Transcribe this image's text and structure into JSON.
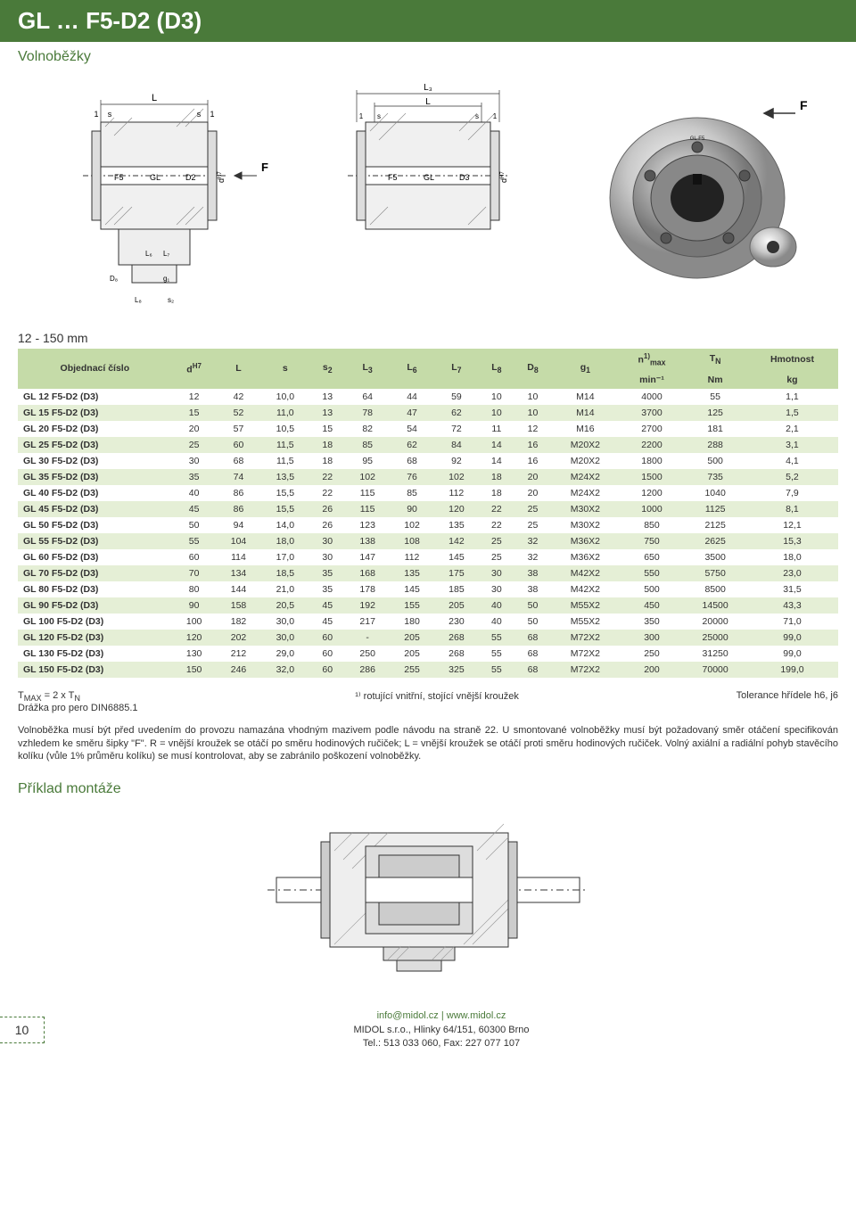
{
  "header": {
    "title": "GL … F5-D2 (D3)",
    "subtitle": "Volnoběžky",
    "dim_label": "12 - 150 mm"
  },
  "diagrams": {
    "d1_labels": {
      "top_L": "L",
      "s": "s",
      "1": "1",
      "F5": "F5",
      "GL": "GL",
      "D2": "D2",
      "F": "F",
      "dH7": "d",
      "L6": "L₆",
      "L7": "L₇",
      "D8": "D₈",
      "g1": "g₁",
      "L8": "L₈",
      "s2": "s₂"
    },
    "d2_labels": {
      "top_L3": "L₃",
      "L": "L",
      "s": "s",
      "1": "1",
      "F5": "F5",
      "GL": "GL",
      "D3": "D3",
      "F": "F",
      "dH7": "d"
    }
  },
  "table": {
    "header_bg": "#c5dba8",
    "row_alt_bg": "#e5efd6",
    "columns": [
      {
        "label": "Objednací číslo",
        "sub": ""
      },
      {
        "label": "d",
        "sup": "H7",
        "sub": ""
      },
      {
        "label": "L",
        "sub": ""
      },
      {
        "label": "s",
        "sub": ""
      },
      {
        "label": "s",
        "sub": "2"
      },
      {
        "label": "L",
        "sub": "3"
      },
      {
        "label": "L",
        "sub": "6"
      },
      {
        "label": "L",
        "sub": "7"
      },
      {
        "label": "L",
        "sub": "8"
      },
      {
        "label": "D",
        "sub": "8"
      },
      {
        "label": "g",
        "sub": "1"
      },
      {
        "label": "n",
        "sub": "max",
        "sup": "1)",
        "unit": "min⁻¹"
      },
      {
        "label": "T",
        "sub": "N",
        "unit": "Nm"
      },
      {
        "label": "Hmotnost",
        "unit": "kg"
      }
    ],
    "rows": [
      [
        "GL 12 F5-D2 (D3)",
        "12",
        "42",
        "10,0",
        "13",
        "64",
        "44",
        "59",
        "10",
        "10",
        "M14",
        "4000",
        "55",
        "1,1"
      ],
      [
        "GL 15 F5-D2 (D3)",
        "15",
        "52",
        "11,0",
        "13",
        "78",
        "47",
        "62",
        "10",
        "10",
        "M14",
        "3700",
        "125",
        "1,5"
      ],
      [
        "GL 20 F5-D2 (D3)",
        "20",
        "57",
        "10,5",
        "15",
        "82",
        "54",
        "72",
        "11",
        "12",
        "M16",
        "2700",
        "181",
        "2,1"
      ],
      [
        "GL 25 F5-D2 (D3)",
        "25",
        "60",
        "11,5",
        "18",
        "85",
        "62",
        "84",
        "14",
        "16",
        "M20X2",
        "2200",
        "288",
        "3,1"
      ],
      [
        "GL 30 F5-D2 (D3)",
        "30",
        "68",
        "11,5",
        "18",
        "95",
        "68",
        "92",
        "14",
        "16",
        "M20X2",
        "1800",
        "500",
        "4,1"
      ],
      [
        "GL 35 F5-D2 (D3)",
        "35",
        "74",
        "13,5",
        "22",
        "102",
        "76",
        "102",
        "18",
        "20",
        "M24X2",
        "1500",
        "735",
        "5,2"
      ],
      [
        "GL 40 F5-D2 (D3)",
        "40",
        "86",
        "15,5",
        "22",
        "115",
        "85",
        "112",
        "18",
        "20",
        "M24X2",
        "1200",
        "1040",
        "7,9"
      ],
      [
        "GL 45 F5-D2 (D3)",
        "45",
        "86",
        "15,5",
        "26",
        "115",
        "90",
        "120",
        "22",
        "25",
        "M30X2",
        "1000",
        "1125",
        "8,1"
      ],
      [
        "GL 50 F5-D2 (D3)",
        "50",
        "94",
        "14,0",
        "26",
        "123",
        "102",
        "135",
        "22",
        "25",
        "M30X2",
        "850",
        "2125",
        "12,1"
      ],
      [
        "GL 55 F5-D2 (D3)",
        "55",
        "104",
        "18,0",
        "30",
        "138",
        "108",
        "142",
        "25",
        "32",
        "M36X2",
        "750",
        "2625",
        "15,3"
      ],
      [
        "GL 60 F5-D2 (D3)",
        "60",
        "114",
        "17,0",
        "30",
        "147",
        "112",
        "145",
        "25",
        "32",
        "M36X2",
        "650",
        "3500",
        "18,0"
      ],
      [
        "GL 70 F5-D2 (D3)",
        "70",
        "134",
        "18,5",
        "35",
        "168",
        "135",
        "175",
        "30",
        "38",
        "M42X2",
        "550",
        "5750",
        "23,0"
      ],
      [
        "GL 80 F5-D2 (D3)",
        "80",
        "144",
        "21,0",
        "35",
        "178",
        "145",
        "185",
        "30",
        "38",
        "M42X2",
        "500",
        "8500",
        "31,5"
      ],
      [
        "GL 90 F5-D2 (D3)",
        "90",
        "158",
        "20,5",
        "45",
        "192",
        "155",
        "205",
        "40",
        "50",
        "M55X2",
        "450",
        "14500",
        "43,3"
      ],
      [
        "GL 100 F5-D2 (D3)",
        "100",
        "182",
        "30,0",
        "45",
        "217",
        "180",
        "230",
        "40",
        "50",
        "M55X2",
        "350",
        "20000",
        "71,0"
      ],
      [
        "GL 120 F5-D2 (D3)",
        "120",
        "202",
        "30,0",
        "60",
        "-",
        "205",
        "268",
        "55",
        "68",
        "M72X2",
        "300",
        "25000",
        "99,0"
      ],
      [
        "GL 130 F5-D2 (D3)",
        "130",
        "212",
        "29,0",
        "60",
        "250",
        "205",
        "268",
        "55",
        "68",
        "M72X2",
        "250",
        "31250",
        "99,0"
      ],
      [
        "GL 150 F5-D2 (D3)",
        "150",
        "246",
        "32,0",
        "60",
        "286",
        "255",
        "325",
        "55",
        "68",
        "M72X2",
        "200",
        "70000",
        "199,0"
      ]
    ]
  },
  "notes": {
    "left_line1": "T_MAX = 2 x T_N",
    "left_line2": "Drážka pro pero DIN6885.1",
    "center": "¹⁾ rotující vnitřní, stojící vnější kroužek",
    "right": "Tolerance hřídele h6, j6"
  },
  "paragraph": "Volnoběžka musí být před uvedením do provozu namazána vhodným mazivem podle návodu na straně 22. U smontované volnoběžky musí být požadovaný směr otáčení specifikován vzhledem ke směru šipky \"F\". R = vnější kroužek se otáčí po směru hodinových ručiček; L = vnější kroužek se otáčí proti směru hodinových ručiček. Volný axiální a radiální pohyb stavěcího kolíku (vůle 1% průměru kolíku) se musí kontrolovat, aby se zabránilo poškození volnoběžky.",
  "example": {
    "heading": "Příklad montáže"
  },
  "footer": {
    "page_num": "10",
    "email": "info@midol.cz",
    "url": "www.midol.cz",
    "company": "MIDOL s.r.o., Hlinky 64/151, 60300 Brno",
    "tel": "Tel.: 513 033 060, Fax: 227 077 107"
  },
  "colors": {
    "brand_green": "#4a7a3a",
    "header_bg": "#c5dba8",
    "row_alt": "#e5efd6",
    "text": "#333333",
    "bg": "#ffffff"
  }
}
